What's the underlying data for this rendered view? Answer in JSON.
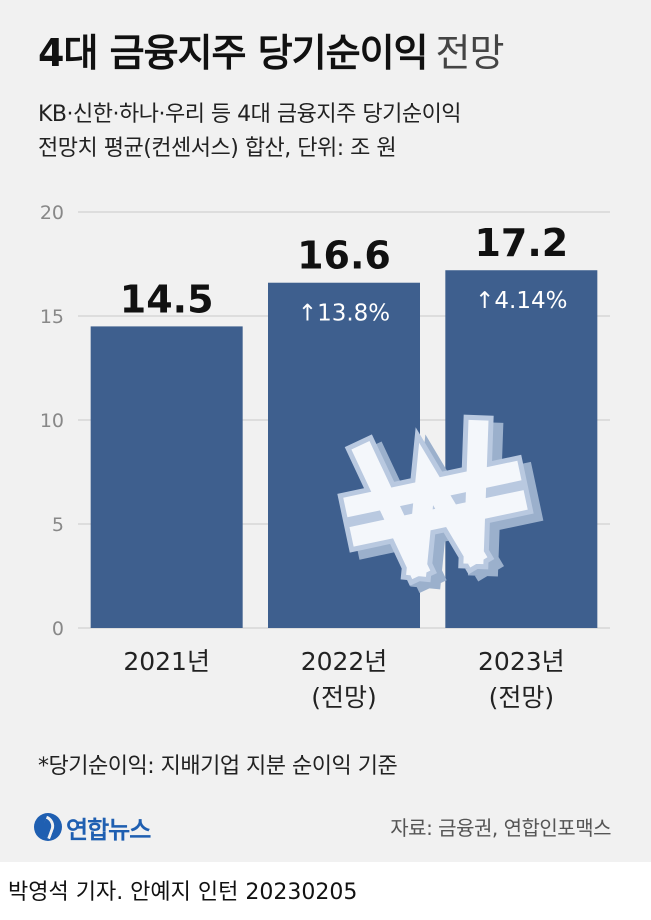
{
  "header": {
    "title_bold": "4대 금융지주 당기순이익",
    "title_light": "전망",
    "subtitle_line1": "KB·신한·하나·우리 등 4대 금융지주 당기순이익",
    "subtitle_line2": "전망치 평균(컨센서스) 합산, 단위: 조 원"
  },
  "chart_data": {
    "type": "bar",
    "categories": [
      [
        "2021년"
      ],
      [
        "2022년",
        "(전망)"
      ],
      [
        "2023년",
        "(전망)"
      ]
    ],
    "values": [
      14.5,
      16.6,
      17.2
    ],
    "value_labels": [
      "14.5",
      "16.6",
      "17.2"
    ],
    "change_labels": [
      "",
      "↑13.8%",
      "↑4.14%"
    ],
    "yticks": [
      0,
      5,
      10,
      15,
      20
    ],
    "ylim": [
      0,
      20
    ],
    "grid": true,
    "bar_color": "#3e5f8e",
    "label_color": "#ffffff"
  },
  "footnote": "*당기순이익: 지배기업 지분 순이익 기준",
  "logo_text": "연합뉴스",
  "source": "자료: 금융권, 연합인포맥스",
  "credit": "박영석 기자. 안예지 인턴  20230205"
}
